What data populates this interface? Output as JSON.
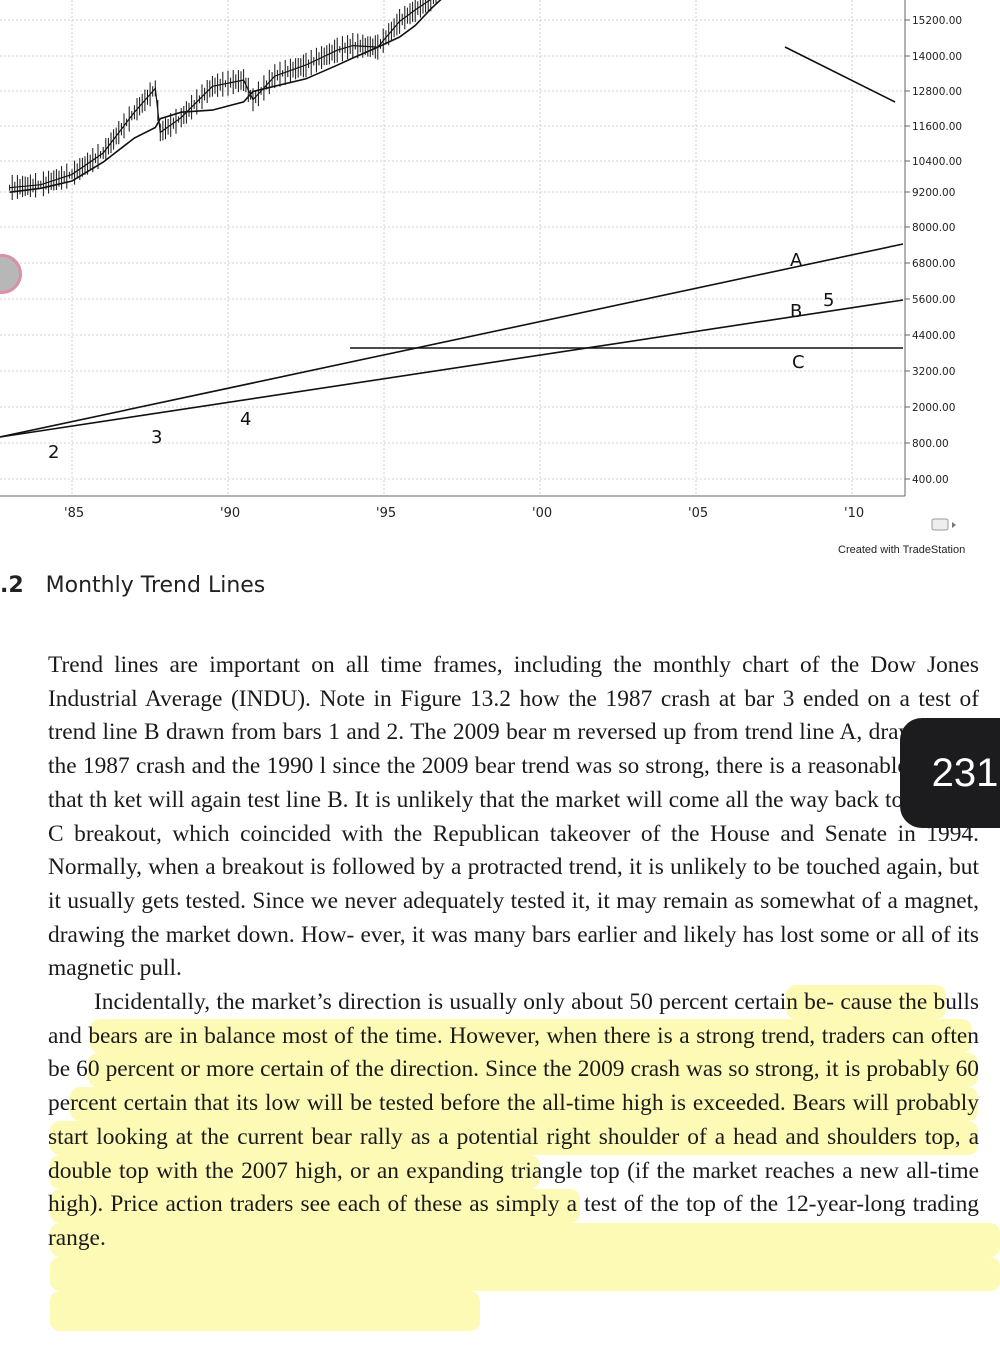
{
  "chart_data": {
    "type": "line",
    "title": "",
    "xlabel": "",
    "ylabel": "",
    "x_ticks": [
      "'85",
      "'90",
      "'95",
      "'00",
      "'05",
      "'10"
    ],
    "y_ticks": [
      "15200.00",
      "14000.00",
      "12800.00",
      "11600.00",
      "10400.00",
      "9200.00",
      "8000.00",
      "6800.00",
      "5600.00",
      "4400.00",
      "3200.00",
      "2000.00",
      "800.00",
      "400.00"
    ],
    "series": [
      {
        "x": [
          1983.0,
          1984.0,
          1985.0,
          1986.0,
          1987.0,
          1987.67,
          1987.83,
          1988.5,
          1989.5,
          1990.5,
          1990.8,
          1991.5,
          1992.5,
          1993.5,
          1994.0,
          1994.8,
          1995.5,
          1996.0,
          1996.5,
          1997.0,
          1997.5,
          1998.0,
          1998.6,
          1999.0,
          1999.5,
          2000.0,
          2000.5,
          2001.0,
          2001.7,
          2002.0,
          2002.5,
          2002.8,
          2003.2,
          2003.8,
          2004.5,
          2005.5,
          2006.0,
          2006.5,
          2007.0,
          2007.5,
          2007.8,
          2008.2,
          2008.6,
          2008.9,
          2009.2,
          2009.6,
          2010.0,
          2010.5,
          2011.0,
          2011.3,
          2011.6
        ],
        "values": [
          1150,
          1180,
          1290,
          1550,
          2200,
          2700,
          1850,
          2100,
          2750,
          2900,
          2450,
          3000,
          3300,
          3750,
          3900,
          3850,
          4800,
          5300,
          5800,
          6800,
          7900,
          8300,
          8500,
          9500,
          10800,
          11500,
          10700,
          10800,
          10000,
          10400,
          9200,
          8000,
          8300,
          9800,
          10200,
          10700,
          11000,
          11500,
          12300,
          13900,
          13500,
          12300,
          11300,
          8800,
          7100,
          9500,
          10600,
          10200,
          11800,
          12500,
          12800
        ]
      }
    ],
    "trend_lines": [
      "A",
      "B",
      "C"
    ],
    "bar_labels": [
      "2",
      "3",
      "4",
      "5"
    ]
  },
  "credit": "Created with TradeStation",
  "caption": {
    "number": ".2",
    "title": "Monthly Trend Lines"
  },
  "body": {
    "p1_lines": [
      "Trend lines are important on all time frames, including the monthly chart of the",
      "Dow Jones Industrial Average (INDU). Note in Figure 13.2 how the 1987 crash at",
      "bar 3 ended on a test of trend line B drawn from bars 1 and 2. The 2009 bear m",
      "reversed up from trend line A, drawn from the 1987 crash and the 1990 l",
      "since the 2009 bear trend was so strong, there is a reasonable chance that th",
      "ket will again test line B. It is unlikely that the market will come all the way back",
      "to the line C breakout, which coincided with the Republican takeover of the House",
      "and Senate in 1994. Normally, when a breakout is followed by a protracted trend, it",
      "is unlikely to be touched again, but it usually gets tested. Since we never adequately",
      "tested it, it may remain as somewhat of a magnet, drawing the market down. How-",
      "ever, it was many bars earlier and likely has lost some or all of its magnetic pull."
    ],
    "p2_lines": [
      "Incidentally, the market’s direction is usually only about 50 percent certain be-",
      "cause the bulls and bears are in balance most of the time. However, when there",
      "is a strong trend, traders can often be 60 percent or more certain of the direction.",
      "Since the 2009 crash was so strong, it is probably 60 percent certain that its low will",
      "be tested before the all-time high is exceeded. Bears will probably start looking at",
      "the current bear rally as a potential right shoulder of a head and shoulders top, a",
      "double top with the 2007 high, or an expanding triangle top (if the market reaches",
      "a new all-time high). Price action traders see each of these as simply a test of the",
      "top of the 12-year-long trading range."
    ]
  },
  "page_number": "231",
  "colors": {
    "highlight": "#fcf678",
    "tab_bg": "#1c1c1e",
    "line": "#111111",
    "grid": "#d0d0d0"
  }
}
